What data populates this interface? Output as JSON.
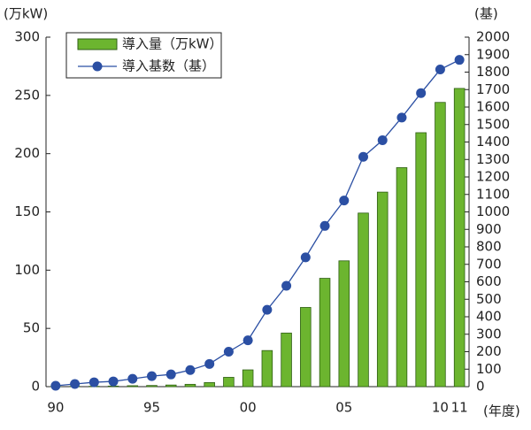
{
  "chart_data": {
    "type": "bar-line",
    "y_label": "(万kW)",
    "y2_label": "(基)",
    "x_label": "(年度)",
    "categories": [
      "90",
      null,
      null,
      null,
      null,
      "95",
      null,
      null,
      null,
      null,
      "00",
      null,
      null,
      null,
      null,
      "05",
      null,
      null,
      null,
      null,
      "10",
      "11"
    ],
    "series": [
      {
        "name": "導入量（万kW）",
        "type": "bar",
        "color": "#6cb52f",
        "values": [
          0.1,
          0.2,
          0.3,
          0.5,
          0.8,
          1,
          1.4,
          2,
          3.5,
          8,
          14.4,
          31,
          46,
          68,
          93,
          108,
          149,
          167,
          188,
          218,
          244,
          256
        ]
      },
      {
        "name": "導入基数（基）",
        "type": "line",
        "axis": "y2",
        "color": "#2b4fa3",
        "values": [
          5,
          15,
          25,
          30,
          45,
          60,
          70,
          95,
          130,
          200,
          265,
          440,
          577,
          740,
          920,
          1065,
          1315,
          1410,
          1540,
          1680,
          1815,
          1870
        ]
      }
    ],
    "ylim": [
      0,
      300
    ],
    "yticks": [
      0,
      50,
      100,
      150,
      200,
      250,
      300
    ],
    "y2lim": [
      0,
      2000
    ],
    "y2ticks": [
      0,
      100,
      200,
      300,
      400,
      500,
      600,
      700,
      800,
      900,
      1000,
      1100,
      1200,
      1300,
      1400,
      1500,
      1600,
      1700,
      1800,
      1900,
      2000
    ],
    "legend": "top-left"
  }
}
